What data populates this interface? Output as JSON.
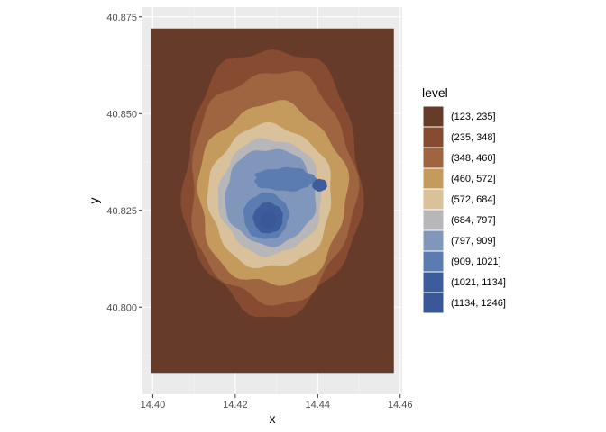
{
  "chart_data": {
    "type": "contour",
    "xlabel": "x",
    "ylabel": "y",
    "xlim": [
      14.3975,
      14.4605
    ],
    "ylim": [
      40.7775,
      40.8775
    ],
    "x_ticks": [
      14.4,
      14.42,
      14.44,
      14.46
    ],
    "x_tick_labels": [
      "14.40",
      "14.42",
      "14.44",
      "14.46"
    ],
    "y_ticks": [
      40.8,
      40.825,
      40.85,
      40.875
    ],
    "y_tick_labels": [
      "40.800",
      "40.825",
      "40.850",
      "40.875"
    ],
    "data_extent": {
      "x": [
        14.3995,
        14.4585
      ],
      "y": [
        40.783,
        40.872
      ]
    },
    "grid": true,
    "legend_position": "right",
    "legend": {
      "title": "level",
      "entries": [
        {
          "label": "(123, 235]",
          "color": "#673b2a"
        },
        {
          "label": "(235, 348]",
          "color": "#874b32"
        },
        {
          "label": "(348, 460]",
          "color": "#9e6540"
        },
        {
          "label": "(460, 572]",
          "color": "#c49b5c"
        },
        {
          "label": "(572, 684]",
          "color": "#d8c19b"
        },
        {
          "label": "(684, 797]",
          "color": "#b7b7b9"
        },
        {
          "label": "(797, 909]",
          "color": "#8097bb"
        },
        {
          "label": "(909, 1021]",
          "color": "#5a7cb1"
        },
        {
          "label": "(1021, 1134]",
          "color": "#3d5c9b"
        },
        {
          "label": "(1134, 1246]",
          "color": "#3a5797"
        }
      ]
    },
    "contour_bands": [
      {
        "level_index": 1,
        "center": [
          14.429,
          40.8325
        ],
        "rx": 0.0215,
        "ry": 0.0345,
        "irregularity": 0.06
      },
      {
        "level_index": 2,
        "center": [
          14.429,
          40.831
        ],
        "rx": 0.02,
        "ry": 0.03,
        "irregularity": 0.06
      },
      {
        "level_index": 3,
        "center": [
          14.429,
          40.829
        ],
        "rx": 0.018,
        "ry": 0.0235,
        "irregularity": 0.06
      },
      {
        "level_index": 4,
        "center": [
          14.4285,
          40.8285
        ],
        "rx": 0.015,
        "ry": 0.0185,
        "irregularity": 0.05
      },
      {
        "level_index": 5,
        "center": [
          14.4285,
          40.8285
        ],
        "rx": 0.0125,
        "ry": 0.015,
        "irregularity": 0.05
      },
      {
        "level_index": 6,
        "center": [
          14.4285,
          40.8285
        ],
        "rx": 0.011,
        "ry": 0.0125,
        "irregularity": 0.05
      },
      {
        "level_index": 7,
        "center": [
          14.432,
          40.833
        ],
        "rx": 0.0075,
        "ry": 0.003,
        "irregularity": 0.1
      },
      {
        "level_index": 7,
        "center": [
          14.4275,
          40.8235
        ],
        "rx": 0.0055,
        "ry": 0.006,
        "irregularity": 0.05
      },
      {
        "level_index": 8,
        "center": [
          14.428,
          40.823
        ],
        "rx": 0.0036,
        "ry": 0.004,
        "irregularity": 0.05
      },
      {
        "level_index": 8,
        "center": [
          14.4405,
          40.8315
        ],
        "rx": 0.0018,
        "ry": 0.0016,
        "irregularity": 0.05
      },
      {
        "level_index": 9,
        "center": [
          14.428,
          40.8225
        ],
        "rx": 0.002,
        "ry": 0.0022,
        "irregularity": 0.05
      }
    ]
  }
}
